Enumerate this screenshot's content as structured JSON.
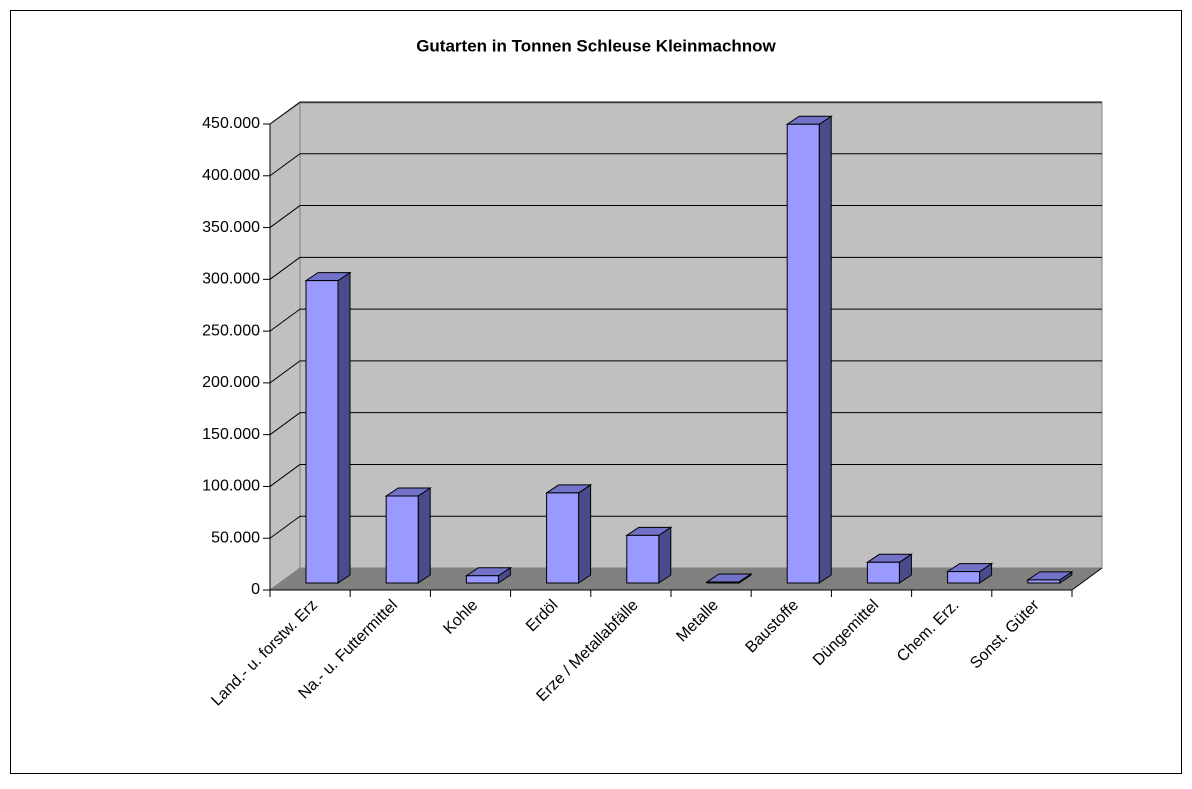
{
  "chart_data": {
    "type": "bar3d",
    "title": "Gutarten in Tonnen Schleuse Kleinmachnow",
    "categories": [
      "Land.- u. forstw. Erz",
      "Na.- u. Futtermittel",
      "Kohle",
      "Erdöl",
      "Erze / Metallabfälle",
      "Metalle",
      "Baustoffe",
      "Düngemittel",
      "Chem. Erz.",
      "Sonst. Güter"
    ],
    "values": [
      292000,
      84000,
      7000,
      87000,
      46000,
      1000,
      443000,
      20000,
      11000,
      3000
    ],
    "color": "#9999ff",
    "ylim": [
      0,
      450000
    ],
    "yticks": [
      0,
      {
        "value": 50000,
        "label": "50.000"
      },
      {
        "value": 100000,
        "label": "100.000"
      },
      {
        "value": 150000,
        "label": "150.000"
      },
      {
        "value": 200000,
        "label": "200.000"
      },
      {
        "value": 250000,
        "label": "250.000"
      },
      {
        "value": 300000,
        "label": "300.000"
      },
      {
        "value": 350000,
        "label": "350.000"
      },
      {
        "value": 400000,
        "label": "400.000"
      },
      {
        "value": 450000,
        "label": "450.000"
      }
    ],
    "grid": true
  }
}
